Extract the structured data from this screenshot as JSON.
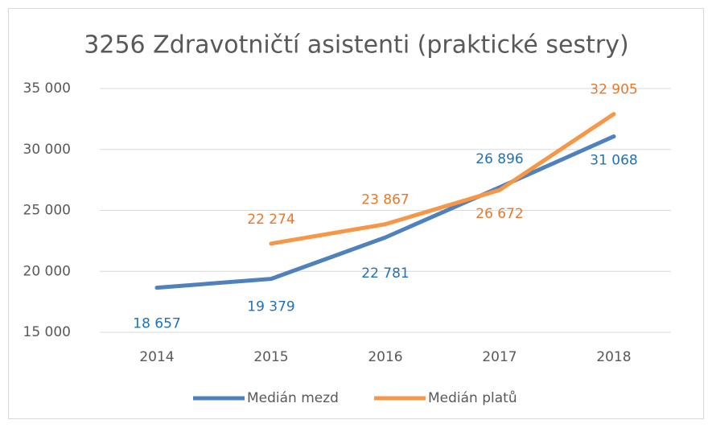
{
  "chart_data": {
    "type": "line",
    "title": "3256 Zdravotničtí asistenti (praktické sestry)",
    "categories": [
      "2014",
      "2015",
      "2016",
      "2017",
      "2018"
    ],
    "series": [
      {
        "name": "Medián mezd",
        "color": "#4f81bd",
        "label_color": "#1f72b8",
        "values": [
          18657,
          19379,
          22781,
          26896,
          31068
        ],
        "value_labels": [
          "18 657",
          "19 379",
          "22 781",
          "26 896",
          "31 068"
        ]
      },
      {
        "name": "Medián platů",
        "color": "#f79646",
        "label_color": "#e8782a",
        "values": [
          null,
          22274,
          23867,
          26672,
          32905
        ],
        "value_labels": [
          null,
          "22 274",
          "23 867",
          "26 672",
          "32 905"
        ]
      }
    ],
    "ylim": [
      15000,
      35000
    ],
    "yticks": [
      {
        "value": 15000,
        "label": "15 000"
      },
      {
        "value": 20000,
        "label": "20 000"
      },
      {
        "value": 25000,
        "label": "25 000"
      },
      {
        "value": 30000,
        "label": "30 000"
      },
      {
        "value": 35000,
        "label": "35 000"
      }
    ],
    "grid": true,
    "legend": "bottom"
  }
}
